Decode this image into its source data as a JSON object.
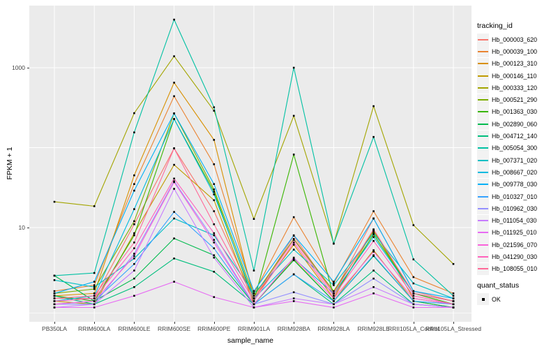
{
  "chart_data": {
    "type": "line",
    "title": "",
    "xlabel": "sample_name",
    "ylabel": "FPKM + 1",
    "y_scale": "log10",
    "y_axis_breaks": [
      10,
      1000
    ],
    "y_gridlines_major": [
      10,
      100,
      1000
    ],
    "y_gridlines_minor": [
      0.85
    ],
    "ylim": [
      0.66,
      6000
    ],
    "grid": true,
    "panel_bg": "#EBEBEB",
    "grid_color": "#FFFFFF",
    "marker_color": "#000000",
    "legend_key_bg": "#F2F2F2",
    "legend_position": "right",
    "categories": [
      "PB350LA",
      "RRIM600LA",
      "RRIM600LE",
      "RRIM600SE",
      "RRIM600PE",
      "RRIM901LA",
      "RRIM928BA",
      "RRIM928LA",
      "RRIM928LE",
      "RRII105LA_Control",
      "RRII105LA_Stressed"
    ],
    "legend": {
      "title": "tracking_id"
    },
    "quant_legend": {
      "title": "quant_status",
      "entries": [
        {
          "label": "OK",
          "marker": "black-square"
        }
      ]
    },
    "series": [
      {
        "name": "Hb_000003_620",
        "color": "#F8766D",
        "values": [
          1.3,
          1.3,
          11,
          98,
          16,
          1.3,
          7.9,
          1.5,
          13,
          1.6,
          1.2
        ]
      },
      {
        "name": "Hb_000039_100",
        "color": "#EA8331",
        "values": [
          1.6,
          1.9,
          35,
          440,
          62,
          1.5,
          13.5,
          2.0,
          16,
          2.4,
          1.5
        ]
      },
      {
        "name": "Hb_000123_310",
        "color": "#D89000",
        "values": [
          1.4,
          1.5,
          45,
          650,
          125,
          1.3,
          6.1,
          1.3,
          9.3,
          1.3,
          1.1
        ]
      },
      {
        "name": "Hb_000146_110",
        "color": "#C09B00",
        "values": [
          1.2,
          1.1,
          8.5,
          61,
          22,
          1.1,
          4.0,
          1.2,
          5.2,
          1.2,
          1.0
        ]
      },
      {
        "name": "Hb_000333_120",
        "color": "#A3A500",
        "values": [
          21,
          18.5,
          270,
          1390,
          290,
          12.8,
          250,
          6.3,
          330,
          10.7,
          3.5
        ]
      },
      {
        "name": "Hb_000521_290",
        "color": "#7CAE00",
        "values": [
          1.5,
          1.7,
          12,
          268,
          30,
          1.4,
          7.2,
          1.6,
          9.0,
          1.5,
          1.2
        ]
      },
      {
        "name": "Hb_001363_030",
        "color": "#39B600",
        "values": [
          1.4,
          1.2,
          8.0,
          228,
          28,
          1.2,
          82,
          1.4,
          8.2,
          1.5,
          1.1
        ]
      },
      {
        "name": "Hb_002890_060",
        "color": "#00BB4E",
        "values": [
          2.5,
          1.2,
          2.3,
          7.3,
          4.5,
          1.1,
          3.9,
          1.2,
          4.4,
          1.2,
          1.0
        ]
      },
      {
        "name": "Hb_004712_140",
        "color": "#00BF7D",
        "values": [
          1.4,
          1.1,
          1.8,
          4.1,
          2.8,
          1.1,
          2.6,
          1.1,
          2.9,
          1.1,
          1.0
        ]
      },
      {
        "name": "Hb_005054_300",
        "color": "#00C1A3",
        "values": [
          2.5,
          2.7,
          155,
          4000,
          320,
          2.9,
          1000,
          6.3,
          136,
          4.0,
          1.4
        ]
      },
      {
        "name": "Hb_007371_020",
        "color": "#00BFC4",
        "values": [
          2.2,
          1.8,
          4.1,
          13,
          8.0,
          1.5,
          5.3,
          1.9,
          8.5,
          2.0,
          1.3
        ]
      },
      {
        "name": "Hb_008667_020",
        "color": "#00BAE0",
        "values": [
          1.2,
          1.4,
          17,
          228,
          26,
          1.3,
          4.1,
          1.5,
          7.6,
          1.5,
          1.2
        ]
      },
      {
        "name": "Hb_009778_030",
        "color": "#00B0F6",
        "values": [
          1.5,
          2.1,
          29,
          268,
          35,
          1.6,
          8.0,
          2.1,
          13,
          1.6,
          1.3
        ]
      },
      {
        "name": "Hb_010327_010",
        "color": "#35A2FF",
        "values": [
          1.1,
          1.2,
          3.5,
          15.7,
          5.5,
          1.1,
          2.6,
          1.2,
          4.5,
          1.2,
          1.1
        ]
      },
      {
        "name": "Hb_010962_030",
        "color": "#9590FF",
        "values": [
          1.1,
          1.1,
          4.7,
          38,
          7.0,
          1.1,
          1.55,
          1.1,
          2.3,
          1.1,
          1.0
        ]
      },
      {
        "name": "Hb_011054_030",
        "color": "#C77CFF",
        "values": [
          1.0,
          1.1,
          2.9,
          30.5,
          4.2,
          1.0,
          1.3,
          1.1,
          1.8,
          1.1,
          1.0
        ]
      },
      {
        "name": "Hb_011925_010",
        "color": "#E76BF3",
        "values": [
          1.0,
          1.0,
          1.4,
          2.1,
          1.35,
          1.0,
          1.2,
          1.0,
          1.5,
          1.0,
          1.0
        ]
      },
      {
        "name": "Hb_021596_070",
        "color": "#FA62DB",
        "values": [
          1.1,
          1.2,
          4.4,
          37,
          6.5,
          1.1,
          4.2,
          1.3,
          5.0,
          1.3,
          1.1
        ]
      },
      {
        "name": "Hb_041290_030",
        "color": "#FF62BC",
        "values": [
          1.2,
          1.3,
          5.5,
          41,
          8.5,
          1.2,
          6.5,
          1.4,
          6.8,
          1.4,
          1.1
        ]
      },
      {
        "name": "Hb_108055_010",
        "color": "#FF6A98",
        "values": [
          1.3,
          1.4,
          6.5,
          98,
          11,
          1.3,
          7.0,
          1.5,
          9.5,
          1.5,
          1.2
        ]
      }
    ]
  }
}
